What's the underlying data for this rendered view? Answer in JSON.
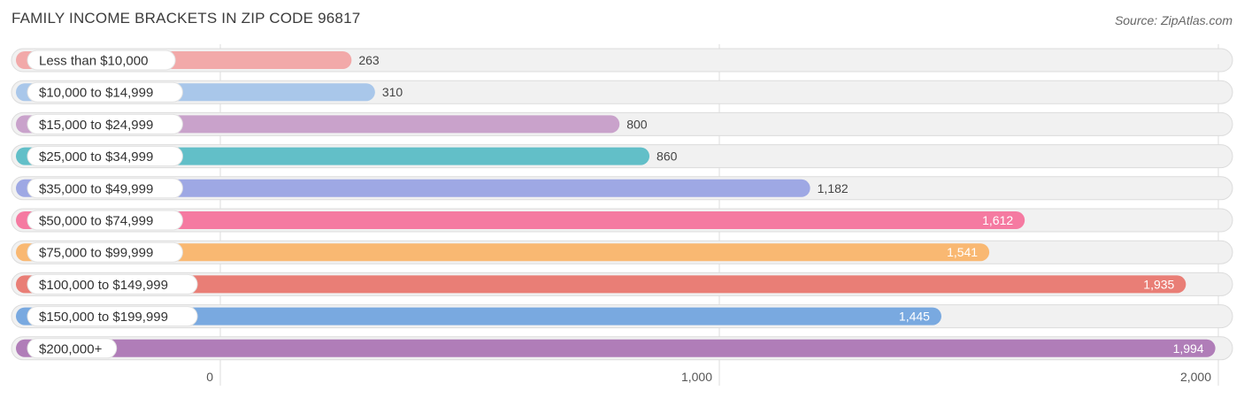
{
  "title": "FAMILY INCOME BRACKETS IN ZIP CODE 96817",
  "source": "Source: ZipAtlas.com",
  "chart_data": {
    "type": "bar",
    "orientation": "horizontal",
    "title": "FAMILY INCOME BRACKETS IN ZIP CODE 96817",
    "categories": [
      "Less than $10,000",
      "$10,000 to $14,999",
      "$15,000 to $24,999",
      "$25,000 to $34,999",
      "$35,000 to $49,999",
      "$50,000 to $74,999",
      "$75,000 to $99,999",
      "$100,000 to $149,999",
      "$150,000 to $199,999",
      "$200,000+"
    ],
    "values": [
      263,
      310,
      800,
      860,
      1182,
      1612,
      1541,
      1935,
      1445,
      1994
    ],
    "value_labels": [
      "263",
      "310",
      "800",
      "860",
      "1,182",
      "1,612",
      "1,541",
      "1,935",
      "1,445",
      "1,994"
    ],
    "colors": [
      "#f2a9a9",
      "#a9c7ea",
      "#c9a2cb",
      "#62bfc8",
      "#9ea8e4",
      "#f57aa1",
      "#f9b872",
      "#e97e76",
      "#79a9e0",
      "#b07db8"
    ],
    "xlim": [
      0,
      2000
    ],
    "xticks": [
      0,
      1000,
      2000
    ],
    "xtick_labels": [
      "0",
      "1,000",
      "2,000"
    ],
    "grid": true
  }
}
